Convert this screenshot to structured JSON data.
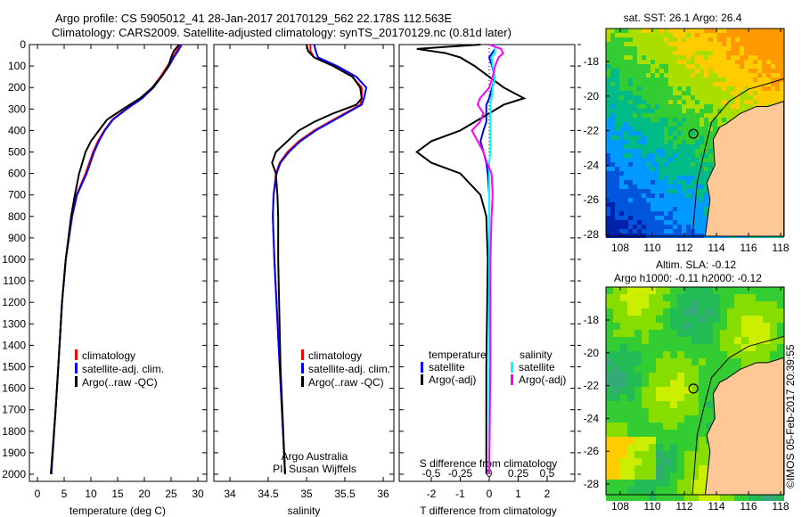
{
  "title": {
    "line1": "Argo profile: CS 5905012_41 28-Jan-2017 20170129_562 22.178S 112.563E",
    "line2": "Climatology: CARS2009. Satellite-adjusted climatology: synTS_20170129.nc (0.81d later)"
  },
  "copyright": "©IMOS 05-Feb-2017 20:39:55",
  "colors": {
    "climatology": "#ff0000",
    "satellite": "#0000ff",
    "argo": "#000000",
    "sal_satellite": "#00ffff",
    "sal_argo": "#ff00ff",
    "land": "#fdc896"
  },
  "chart_data": [
    {
      "type": "line",
      "id": "temperature",
      "xlabel": "temperature (deg C)",
      "ylabel": "depth",
      "xlim": [
        -2,
        31
      ],
      "ylim": [
        2040,
        0
      ],
      "xticks": [
        "0",
        "5",
        "10",
        "15",
        "20",
        "25",
        "30"
      ],
      "yticks": [
        "0",
        "100",
        "200",
        "300",
        "400",
        "500",
        "600",
        "700",
        "800",
        "900",
        "1000",
        "1100",
        "1200",
        "1300",
        "1400",
        "1500",
        "1600",
        "1700",
        "1800",
        "1900",
        "2000"
      ],
      "legend": [
        "climatology",
        "satellite-adj. clim.",
        "Argo(..raw -QC)"
      ],
      "depth": [
        0,
        30,
        60,
        100,
        150,
        200,
        250,
        300,
        350,
        400,
        450,
        500,
        600,
        700,
        800,
        1000,
        1200,
        1500,
        1700,
        2000
      ],
      "series": [
        {
          "name": "climatology",
          "values": [
            26.8,
            26,
            25.3,
            24.3,
            23,
            21.5,
            19.5,
            16.5,
            14,
            12.5,
            11.3,
            10.4,
            9,
            7.3,
            6.4,
            5.3,
            4.6,
            3.9,
            3.4,
            2.6
          ]
        },
        {
          "name": "satellite-adj. clim.",
          "values": [
            27,
            26.3,
            25.5,
            24.6,
            23.2,
            21.7,
            19.6,
            16.7,
            14.1,
            12.6,
            11.5,
            10.6,
            9.2,
            7.4,
            6.5,
            5.3,
            4.6,
            3.9,
            3.4,
            2.6
          ]
        },
        {
          "name": "Argo(..raw -QC)",
          "values": [
            26.5,
            25.5,
            25,
            24.5,
            23.2,
            21.5,
            19.2,
            16,
            13,
            11.5,
            10,
            9,
            7.8,
            7,
            6.3,
            5.3,
            4.6,
            3.9,
            3.4,
            2.5
          ]
        }
      ]
    },
    {
      "type": "line",
      "id": "salinity",
      "xlabel": "salinity",
      "xlim": [
        33.8,
        36.2
      ],
      "ylim": [
        2040,
        0
      ],
      "xticks": [
        "34",
        "34.5",
        "35",
        "35.5",
        "36"
      ],
      "legend": [
        "climatology",
        "satellite-adj. clim.",
        "Argo(..raw -QC)"
      ],
      "annotation": [
        "Argo Australia",
        "PI: Susan Wijffels"
      ],
      "depth": [
        0,
        30,
        60,
        100,
        150,
        200,
        250,
        280,
        320,
        360,
        400,
        450,
        500,
        550,
        600,
        700,
        800,
        1000,
        1500,
        2000
      ],
      "series": [
        {
          "name": "climatology",
          "values": [
            35.05,
            35.05,
            35.1,
            35.35,
            35.6,
            35.72,
            35.72,
            35.7,
            35.5,
            35.3,
            35.1,
            34.9,
            34.75,
            34.65,
            34.6,
            34.57,
            34.56,
            34.58,
            34.65,
            34.72
          ]
        },
        {
          "name": "satellite-adj. clim.",
          "values": [
            35.1,
            35.12,
            35.15,
            35.4,
            35.65,
            35.78,
            35.75,
            35.72,
            35.52,
            35.32,
            35.12,
            34.92,
            34.77,
            34.66,
            34.61,
            34.57,
            34.56,
            34.58,
            34.65,
            34.72
          ]
        },
        {
          "name": "Argo(..raw -QC)",
          "values": [
            35.0,
            35.02,
            35.1,
            35.35,
            35.6,
            35.7,
            35.72,
            35.65,
            35.35,
            35.1,
            34.9,
            34.75,
            34.6,
            34.55,
            34.6,
            34.62,
            34.63,
            34.63,
            34.66,
            34.72
          ]
        }
      ]
    },
    {
      "type": "line",
      "id": "difference",
      "xlabel": "T difference from climatology",
      "x2label": "S difference from climatology",
      "xlim": [
        -3,
        3
      ],
      "x2lim": [
        -0.75,
        0.75
      ],
      "ylim": [
        2040,
        0
      ],
      "xticks": [
        "-2",
        "-1",
        "0",
        "1",
        "2"
      ],
      "x2ticks": [
        "-0.5",
        "-0.25",
        "0",
        "0.25",
        "0.5"
      ],
      "legend": {
        "temperature": "temperature",
        "salinity": "salinity",
        "t_sat": "satellite",
        "t_argo": "Argo(-adj)",
        "s_sat": "satellite",
        "s_argo": "Argo(-adj)"
      },
      "depth": [
        0,
        20,
        40,
        60,
        100,
        150,
        200,
        250,
        280,
        320,
        360,
        400,
        450,
        500,
        550,
        600,
        700,
        800,
        1000,
        1500,
        2000
      ],
      "series": [
        {
          "name": "T satellite",
          "values": [
            0.2,
            0.2,
            0.1,
            0,
            0.1,
            0.2,
            0.1,
            0,
            -0.1,
            -0.1,
            -0.1,
            -0.2,
            -0.3,
            -0.2,
            -0.1,
            -0.05,
            0,
            0,
            0,
            0,
            0
          ]
        },
        {
          "name": "T Argo(-adj)",
          "values": [
            -0.3,
            -2.5,
            -1.5,
            -1,
            -0.5,
            0,
            0.5,
            1.2,
            0.5,
            0,
            -0.5,
            -1,
            -2,
            -2.5,
            -2,
            -1,
            -0.3,
            -0.1,
            -0.05,
            -0.1,
            -0.1
          ]
        },
        {
          "name": "S satellite",
          "values": [
            0.05,
            0.05,
            0.05,
            0.02,
            0.03,
            0.05,
            0.03,
            0.02,
            0.01,
            0.01,
            0.01,
            0.01,
            0.01,
            0.01,
            0,
            0,
            0,
            0,
            0,
            0,
            0
          ]
        },
        {
          "name": "S Argo(-adj)",
          "values": [
            0,
            0.1,
            0.12,
            0.08,
            0.05,
            0.03,
            0,
            -0.08,
            -0.1,
            -0.05,
            -0.08,
            -0.15,
            -0.1,
            -0.05,
            -0.02,
            0.02,
            0.03,
            0.02,
            0.01,
            0.01,
            0
          ]
        }
      ]
    },
    {
      "type": "heatmap",
      "id": "sst_map",
      "title": "sat. SST: 26.1  Argo: 26.4",
      "xticks": [
        "108",
        "110",
        "112",
        "114",
        "116",
        "118"
      ],
      "yticks": [
        "-18",
        "-20",
        "-22",
        "-24",
        "-26",
        "-28"
      ],
      "marker": {
        "lon": 112.563,
        "lat": -22.178
      }
    },
    {
      "type": "heatmap",
      "id": "sla_map",
      "title": "Altim. SLA: -0.12",
      "subtitle": "Argo h1000: -0.11 h2000: -0.12",
      "xticks": [
        "108",
        "110",
        "112",
        "114",
        "116",
        "118"
      ],
      "yticks": [
        "-18",
        "-20",
        "-22",
        "-24",
        "-26",
        "-28"
      ],
      "marker": {
        "lon": 112.563,
        "lat": -22.178
      }
    }
  ]
}
